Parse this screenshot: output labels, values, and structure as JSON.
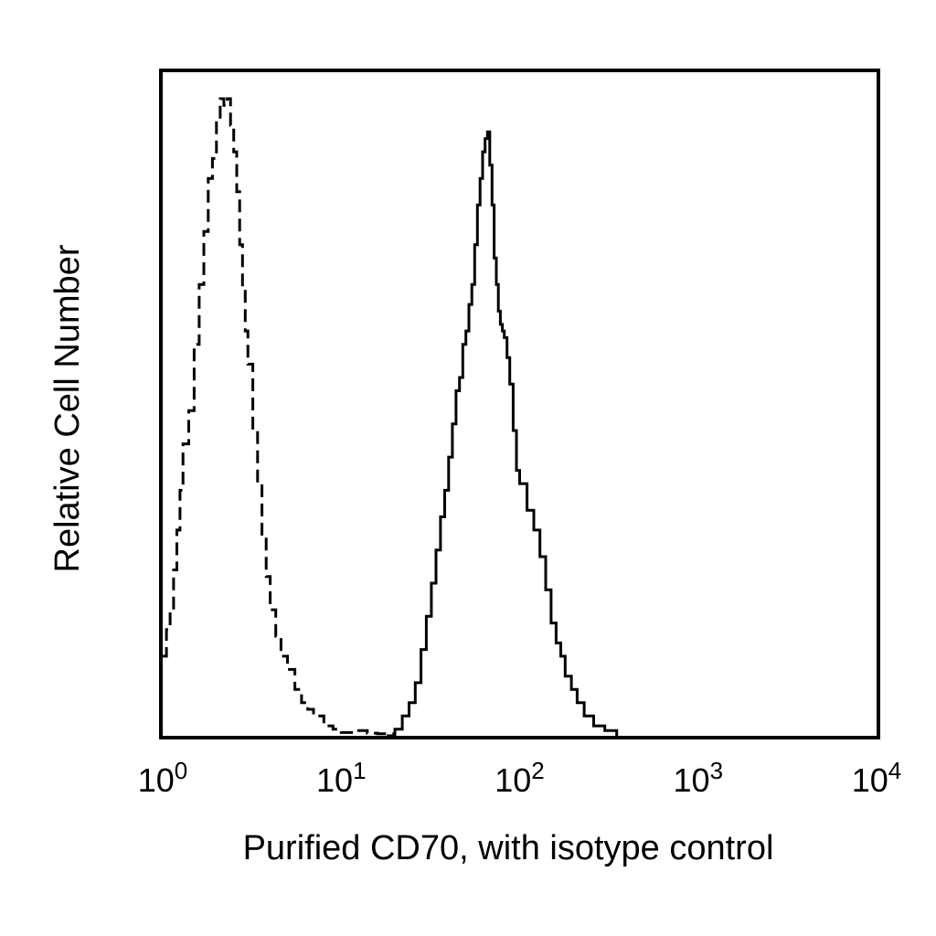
{
  "chart_data": {
    "type": "line",
    "title": "",
    "xlabel": "Purified CD70, with isotype control",
    "ylabel": "Relative Cell Number",
    "x_scale": "log",
    "xlim": [
      1,
      10000
    ],
    "ylim": [
      0,
      100
    ],
    "grid": false,
    "legend": "none",
    "x_ticks": [
      {
        "value": 1,
        "base": "10",
        "exp": "0"
      },
      {
        "value": 10,
        "base": "10",
        "exp": "1"
      },
      {
        "value": 100,
        "base": "10",
        "exp": "2"
      },
      {
        "value": 1000,
        "base": "10",
        "exp": "3"
      },
      {
        "value": 10000,
        "base": "10",
        "exp": "4"
      }
    ],
    "series": [
      {
        "style": "dashed",
        "color": "#000000",
        "points": [
          [
            1.0,
            12
          ],
          [
            1.05,
            16
          ],
          [
            1.1,
            19
          ],
          [
            1.15,
            25
          ],
          [
            1.2,
            31
          ],
          [
            1.25,
            37
          ],
          [
            1.3,
            44
          ],
          [
            1.4,
            49
          ],
          [
            1.5,
            59
          ],
          [
            1.6,
            68
          ],
          [
            1.7,
            76
          ],
          [
            1.8,
            84
          ],
          [
            1.9,
            87
          ],
          [
            2.0,
            93
          ],
          [
            2.1,
            96
          ],
          [
            2.2,
            95
          ],
          [
            2.3,
            96
          ],
          [
            2.4,
            92
          ],
          [
            2.5,
            88
          ],
          [
            2.6,
            82
          ],
          [
            2.7,
            74
          ],
          [
            2.8,
            67
          ],
          [
            2.9,
            61
          ],
          [
            3.0,
            56
          ],
          [
            3.2,
            46
          ],
          [
            3.4,
            38
          ],
          [
            3.6,
            30
          ],
          [
            3.8,
            24
          ],
          [
            4.0,
            19
          ],
          [
            4.3,
            15
          ],
          [
            4.6,
            12
          ],
          [
            5.0,
            10
          ],
          [
            5.5,
            7
          ],
          [
            6.0,
            5
          ],
          [
            6.5,
            4
          ],
          [
            7.0,
            3
          ],
          [
            8.0,
            1.5
          ],
          [
            9.0,
            1
          ],
          [
            10.0,
            0.5
          ],
          [
            12.0,
            0.8
          ],
          [
            14.0,
            0.4
          ],
          [
            16.0,
            0.3
          ],
          [
            20.0,
            0
          ]
        ]
      },
      {
        "style": "solid",
        "color": "#000000",
        "points": [
          [
            18,
            0
          ],
          [
            20,
            1
          ],
          [
            22,
            3
          ],
          [
            24,
            5
          ],
          [
            26,
            8
          ],
          [
            28,
            13
          ],
          [
            30,
            18
          ],
          [
            32,
            23
          ],
          [
            34,
            28
          ],
          [
            36,
            33
          ],
          [
            38,
            37
          ],
          [
            40,
            42
          ],
          [
            42,
            47
          ],
          [
            44,
            52
          ],
          [
            46,
            54
          ],
          [
            48,
            59
          ],
          [
            50,
            61
          ],
          [
            52,
            65
          ],
          [
            54,
            68
          ],
          [
            56,
            74
          ],
          [
            58,
            80
          ],
          [
            60,
            84
          ],
          [
            62,
            88
          ],
          [
            64,
            90
          ],
          [
            66,
            91
          ],
          [
            68,
            86
          ],
          [
            70,
            80
          ],
          [
            72,
            72
          ],
          [
            74,
            68
          ],
          [
            76,
            64
          ],
          [
            78,
            62
          ],
          [
            80,
            61
          ],
          [
            82,
            60
          ],
          [
            85,
            57
          ],
          [
            88,
            53
          ],
          [
            92,
            46
          ],
          [
            96,
            40
          ],
          [
            100,
            38
          ],
          [
            110,
            34
          ],
          [
            120,
            31
          ],
          [
            130,
            27
          ],
          [
            140,
            22
          ],
          [
            150,
            17
          ],
          [
            160,
            14
          ],
          [
            170,
            12
          ],
          [
            180,
            9
          ],
          [
            195,
            7
          ],
          [
            210,
            5
          ],
          [
            230,
            3
          ],
          [
            260,
            1.5
          ],
          [
            300,
            0.8
          ],
          [
            350,
            0
          ]
        ]
      }
    ]
  }
}
